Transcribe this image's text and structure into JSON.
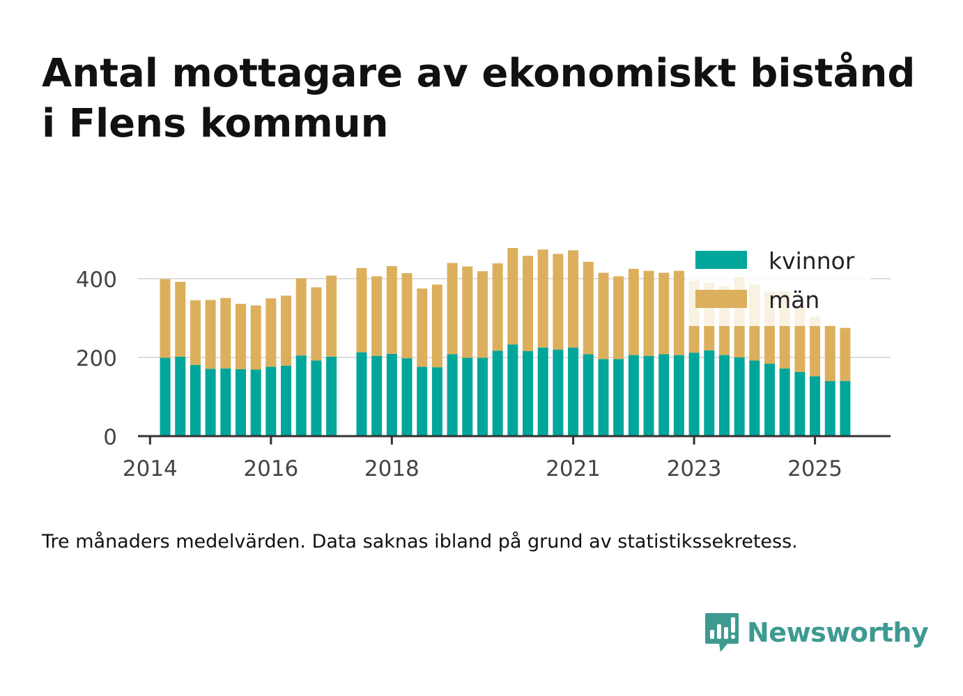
{
  "title": {
    "line1": "Antal mottagare av ekonomiskt bistånd",
    "line2": "i Flens kommun"
  },
  "footnote": "Tre månaders medelvärden. Data saknas ibland på grund av statistikssekretess.",
  "brand": {
    "name": "Newsworthy",
    "icon": "newsworthy-logo-icon",
    "color": "#3e9a91"
  },
  "chart_data": {
    "type": "bar",
    "stacked": true,
    "title": "Antal mottagare av ekonomiskt bistånd i Flens kommun",
    "xlabel": "",
    "ylabel": "",
    "ylim": [
      0,
      500
    ],
    "yticks": [
      0,
      200,
      400
    ],
    "xticks": [
      {
        "label": "2014",
        "value": 2014.0
      },
      {
        "label": "2016",
        "value": 2016.0
      },
      {
        "label": "2018",
        "value": 2018.0
      },
      {
        "label": "2021",
        "value": 2021.0
      },
      {
        "label": "2023",
        "value": 2023.0
      },
      {
        "label": "2025",
        "value": 2025.0
      }
    ],
    "x": [
      2014.25,
      2014.5,
      2014.75,
      2015.0,
      2015.25,
      2015.5,
      2015.75,
      2016.0,
      2016.25,
      2016.5,
      2016.75,
      2017.0,
      2017.25,
      2017.5,
      2017.75,
      2018.0,
      2018.25,
      2018.5,
      2018.75,
      2019.0,
      2019.25,
      2019.5,
      2019.75,
      2020.0,
      2020.25,
      2020.5,
      2020.75,
      2021.0,
      2021.25,
      2021.5,
      2021.75,
      2022.0,
      2022.25,
      2022.5,
      2022.75,
      2023.0,
      2023.25,
      2023.5,
      2023.75,
      2024.0,
      2024.25,
      2024.5,
      2024.75,
      2025.0,
      2025.25,
      2025.5
    ],
    "legend_position": "top-right",
    "colors": {
      "kvinnor": "#00a69a",
      "man": "#dcaf5c",
      "grid": "#dddddd",
      "axis": "#333333"
    },
    "series": [
      {
        "name": "kvinnor",
        "color": "#00a69a",
        "values": [
          199,
          202,
          181,
          171,
          172,
          170,
          169,
          176,
          179,
          205,
          192,
          202,
          null,
          213,
          204,
          209,
          198,
          176,
          175,
          208,
          199,
          199,
          217,
          233,
          216,
          225,
          220,
          225,
          208,
          196,
          196,
          206,
          204,
          208,
          206,
          212,
          218,
          206,
          200,
          192,
          184,
          172,
          163,
          152,
          140,
          140
        ]
      },
      {
        "name": "män",
        "color": "#dcaf5c",
        "values": [
          200,
          190,
          164,
          175,
          179,
          166,
          163,
          174,
          178,
          196,
          186,
          206,
          null,
          214,
          202,
          223,
          216,
          199,
          210,
          232,
          232,
          220,
          222,
          245,
          242,
          249,
          243,
          247,
          235,
          219,
          210,
          219,
          216,
          207,
          214,
          183,
          171,
          175,
          204,
          193,
          183,
          196,
          168,
          151,
          141,
          135
        ]
      }
    ]
  }
}
